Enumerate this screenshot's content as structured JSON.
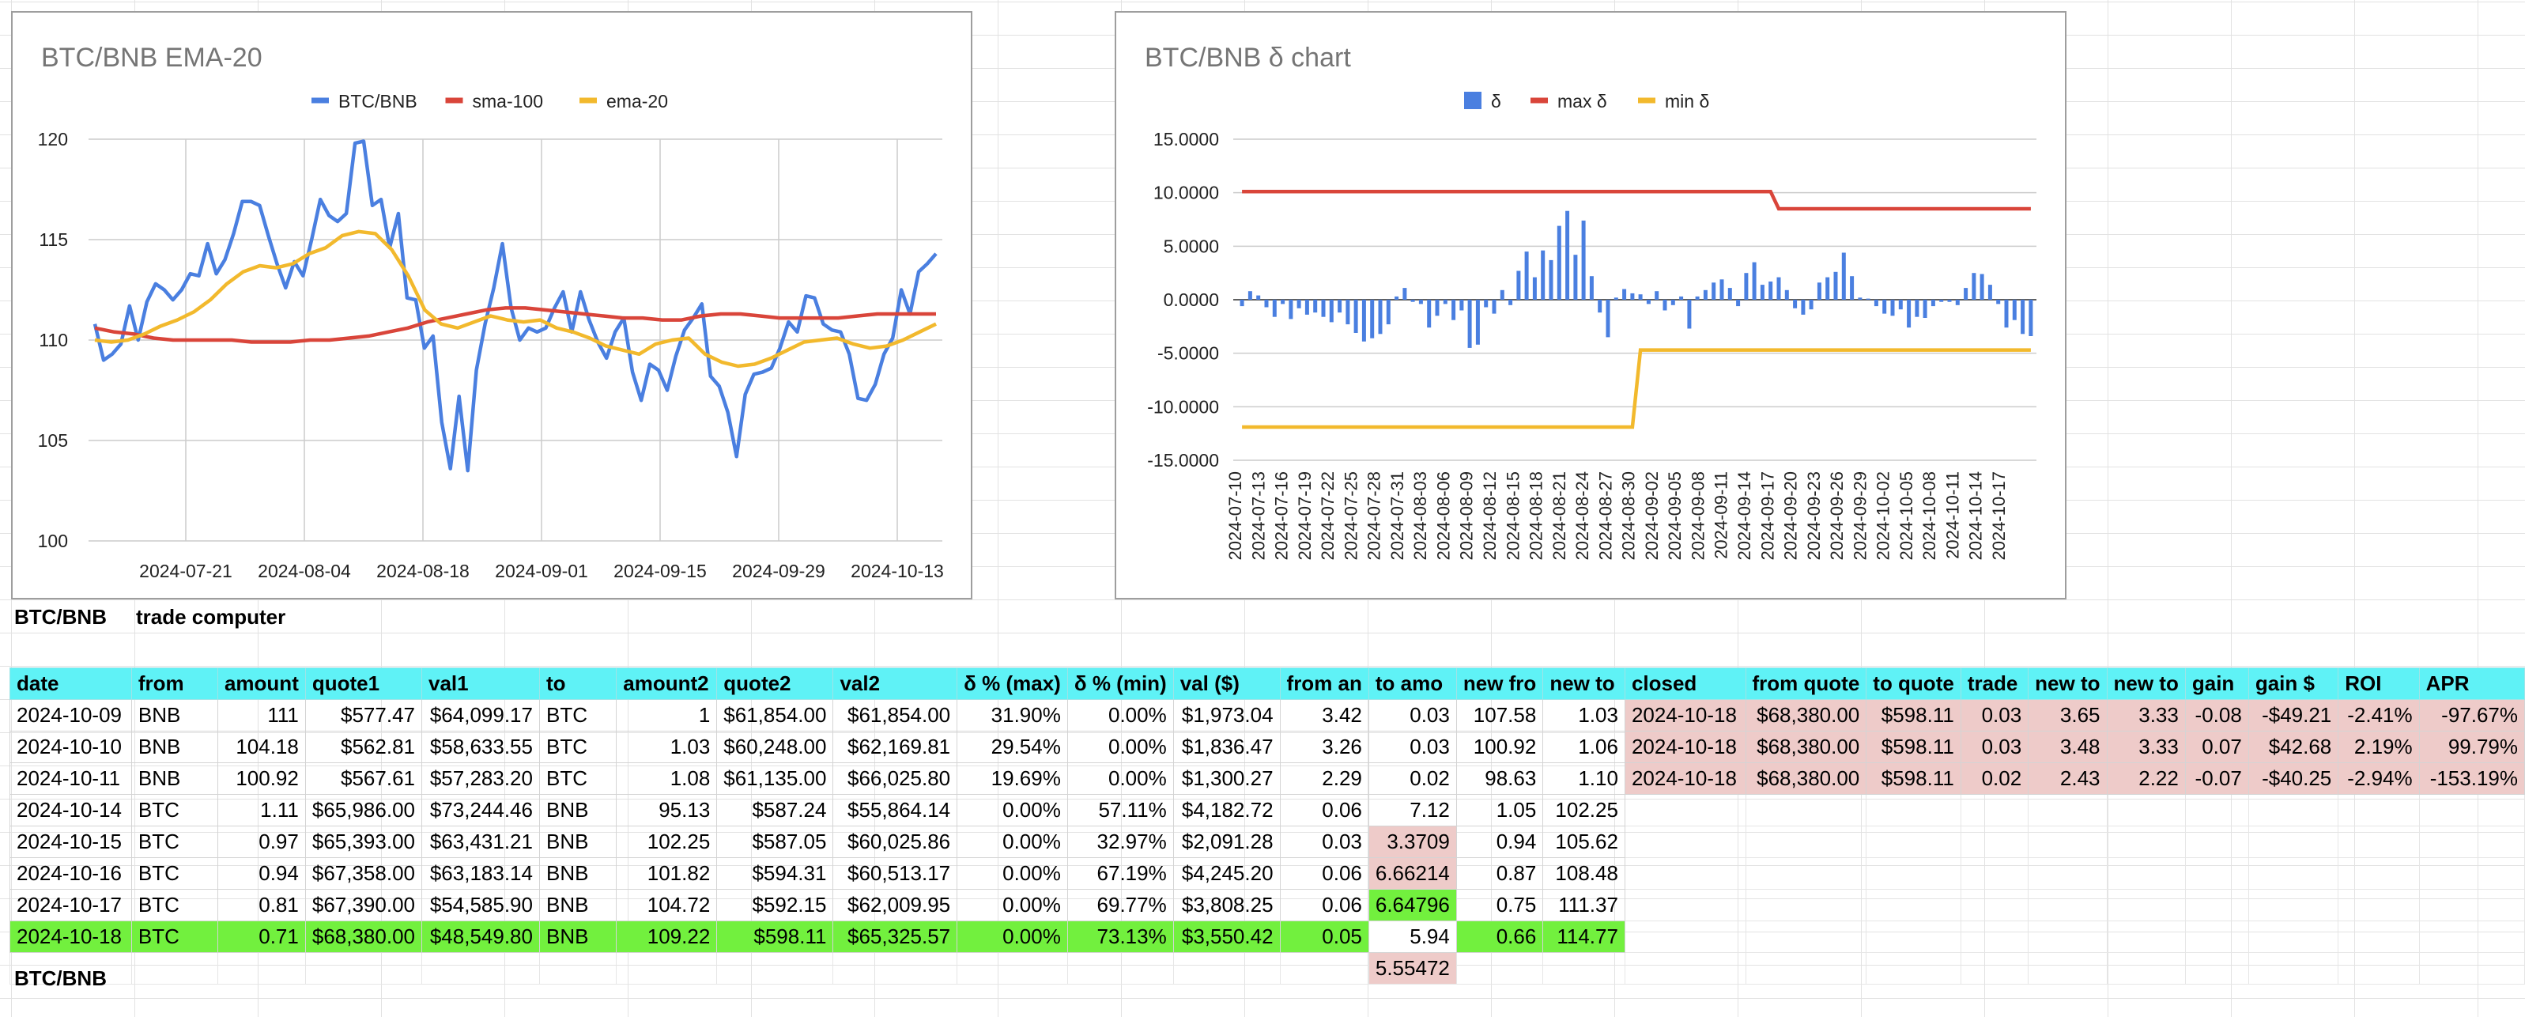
{
  "chart_data": [
    {
      "type": "line",
      "title": "BTC/BNB EMA-20",
      "legend_position": "top",
      "x_ticks": [
        "2024-07-21",
        "2024-08-04",
        "2024-08-18",
        "2024-09-01",
        "2024-09-15",
        "2024-09-29",
        "2024-10-13"
      ],
      "ylim": [
        100,
        120
      ],
      "y_ticks": [
        "100",
        "105",
        "110",
        "115",
        "120"
      ],
      "grid": true,
      "series": [
        {
          "name": "BTC/BNB",
          "color": "#4a7fe0",
          "values": [
            110.8,
            109,
            109.3,
            109.8,
            111.7,
            110,
            111.9,
            112.8,
            112.5,
            112,
            112.5,
            113.3,
            113.2,
            114.8,
            113.3,
            114,
            115.3,
            116.9,
            116.9,
            116.7,
            115.2,
            113.8,
            112.6,
            113.9,
            113.2,
            115,
            117,
            116.2,
            115.9,
            116.3,
            119.8,
            119.9,
            116.7,
            117,
            114.6,
            116.3,
            112.1,
            112,
            109.6,
            110.2,
            105.9,
            103.6,
            107.2,
            103.5,
            108.5,
            110.8,
            112.6,
            114.8,
            111.6,
            110,
            110.6,
            110.4,
            110.6,
            111.6,
            112.4,
            110.4,
            112.4,
            111,
            109.9,
            109.1,
            110.4,
            111.1,
            108.4,
            107,
            108.8,
            108.5,
            107.5,
            109.2,
            110.5,
            111.1,
            111.8,
            108.2,
            107.7,
            106.4,
            104.2,
            107.3,
            108.3,
            108.4,
            108.6,
            109.6,
            110.9,
            110.4,
            112.2,
            112.1,
            110.8,
            110.5,
            110.4,
            109.3,
            107.1,
            107,
            107.8,
            109.3,
            110.1,
            112.5,
            111.3,
            113.4,
            113.8,
            114.3
          ]
        },
        {
          "name": "sma-100",
          "color": "#d9453a",
          "values": [
            110.6,
            110.4,
            110.3,
            110.1,
            110,
            110,
            110,
            110,
            109.9,
            109.9,
            109.9,
            110,
            110,
            110.1,
            110.2,
            110.4,
            110.6,
            110.9,
            111.1,
            111.3,
            111.5,
            111.6,
            111.6,
            111.5,
            111.4,
            111.3,
            111.2,
            111.1,
            111.1,
            111,
            111,
            111.2,
            111.3,
            111.3,
            111.2,
            111.1,
            111.1,
            111.1,
            111.1,
            111.2,
            111.3,
            111.3,
            111.3,
            111.3
          ]
        },
        {
          "name": "ema-20",
          "color": "#f2b92d",
          "values": [
            110,
            109.9,
            110,
            110.3,
            110.7,
            111,
            111.4,
            112,
            112.8,
            113.4,
            113.7,
            113.6,
            113.8,
            114.3,
            114.6,
            115.2,
            115.4,
            115.3,
            114.5,
            113.2,
            111.5,
            110.8,
            110.6,
            110.9,
            111.2,
            111,
            110.9,
            111,
            110.6,
            110.4,
            110.1,
            109.7,
            109.5,
            109.3,
            109.8,
            110,
            110.1,
            109.3,
            108.9,
            108.7,
            108.8,
            109.1,
            109.5,
            109.9,
            110,
            110.1,
            109.8,
            109.6,
            109.7,
            110,
            110.4,
            110.8
          ]
        }
      ]
    },
    {
      "type": "bar+line",
      "title": "BTC/BNB δ chart",
      "legend_position": "top",
      "ylim": [
        -15,
        15
      ],
      "y_ticks": [
        "15.0000",
        "10.0000",
        "5.0000",
        "0.0000",
        "-5.0000",
        "-10.0000",
        "-15.0000"
      ],
      "grid": true,
      "x_ticks": [
        "2024-07-10",
        "2024-07-13",
        "2024-07-16",
        "2024-07-19",
        "2024-07-22",
        "2024-07-25",
        "2024-07-28",
        "2024-07-31",
        "2024-08-03",
        "2024-08-06",
        "2024-08-09",
        "2024-08-12",
        "2024-08-15",
        "2024-08-18",
        "2024-08-21",
        "2024-08-24",
        "2024-08-27",
        "2024-08-30",
        "2024-09-02",
        "2024-09-05",
        "2024-09-08",
        "2024-09-11",
        "2024-09-14",
        "2024-09-17",
        "2024-09-20",
        "2024-09-23",
        "2024-09-26",
        "2024-09-29",
        "2024-10-02",
        "2024-10-05",
        "2024-10-08",
        "2024-10-11",
        "2024-10-14",
        "2024-10-17"
      ],
      "series": [
        {
          "name": "δ",
          "color": "#4a7fe0",
          "values": [
            -0.6,
            0.8,
            0.4,
            -0.7,
            -1.6,
            -0.4,
            -1.8,
            -0.8,
            -1.4,
            -1.2,
            -1.6,
            -2.1,
            -1.2,
            -2.3,
            -3.1,
            -3.9,
            -3.6,
            -3.2,
            -2.3,
            0.3,
            1.1,
            -0.2,
            -0.4,
            -2.6,
            -1.5,
            -0.4,
            -1.9,
            -1,
            -4.5,
            -4.2,
            -0.7,
            -1.3,
            0.9,
            -0.5,
            2.7,
            4.5,
            2.1,
            4.6,
            3.7,
            6.9,
            8.3,
            4.2,
            7.4,
            2.2,
            -1.2,
            -3.5,
            0.2,
            1,
            0.6,
            0.5,
            -0.4,
            0.8,
            -1,
            -0.5,
            0.3,
            -2.7,
            0.3,
            0.9,
            1.6,
            1.9,
            1.1,
            -0.6,
            2.5,
            3.5,
            1.4,
            1.7,
            2.1,
            0.9,
            -0.8,
            -1.4,
            -0.9,
            1.6,
            2.1,
            2.6,
            4.4,
            2.2,
            0.2,
            0.1,
            -0.6,
            -1.3,
            -1.5,
            -0.9,
            -2.6,
            -1.6,
            -1.7,
            -0.6,
            -0.2,
            -0.2,
            -0.5,
            1.1,
            2.5,
            2.4,
            1.4,
            -0.4,
            -2.6,
            -1.9,
            -3.2,
            -3.4
          ]
        },
        {
          "name": "max δ",
          "color": "#d9453a",
          "values": [
            10.1,
            10.1,
            8.5,
            8.5
          ]
        },
        {
          "name": "min δ",
          "color": "#f2b92d",
          "values": [
            -11.9,
            -11.9,
            -4.7,
            -4.7
          ]
        }
      ]
    }
  ],
  "labels": {
    "pair_top": "BTC/BNB",
    "computer": "trade computer",
    "pair_bottom": "BTC/BNB"
  },
  "table": {
    "headers": [
      "date",
      "from",
      "amount",
      "quote1",
      "val1",
      "to",
      "amount2",
      "quote2",
      "val2",
      "δ % (max)",
      "δ % (min)",
      "val ($)",
      "from an",
      "to amo",
      "new fro",
      "new to",
      "closed",
      "from quote",
      "to quote",
      "trade",
      "new to",
      "new to",
      "gain",
      "gain $",
      "ROI",
      "APR"
    ],
    "rows": [
      [
        "2024-10-09",
        "BNB",
        "111",
        "$577.47",
        "$64,099.17",
        "BTC",
        "1",
        "$61,854.00",
        "$61,854.00",
        "31.90%",
        "0.00%",
        "$1,973.04",
        "3.42",
        "0.03",
        "107.58",
        "1.03",
        "2024-10-18",
        "$68,380.00",
        "$598.11",
        "0.03",
        "3.65",
        "3.33",
        "-0.08",
        "-$49.21",
        "-2.41%",
        "-97.67%"
      ],
      [
        "2024-10-10",
        "BNB",
        "104.18",
        "$562.81",
        "$58,633.55",
        "BTC",
        "1.03",
        "$60,248.00",
        "$62,169.81",
        "29.54%",
        "0.00%",
        "$1,836.47",
        "3.26",
        "0.03",
        "100.92",
        "1.06",
        "2024-10-18",
        "$68,380.00",
        "$598.11",
        "0.03",
        "3.48",
        "3.33",
        "0.07",
        "$42.68",
        "2.19%",
        "99.79%"
      ],
      [
        "2024-10-11",
        "BNB",
        "100.92",
        "$567.61",
        "$57,283.20",
        "BTC",
        "1.08",
        "$61,135.00",
        "$66,025.80",
        "19.69%",
        "0.00%",
        "$1,300.27",
        "2.29",
        "0.02",
        "98.63",
        "1.10",
        "2024-10-18",
        "$68,380.00",
        "$598.11",
        "0.02",
        "2.43",
        "2.22",
        "-0.07",
        "-$40.25",
        "-2.94%",
        "-153.19%"
      ],
      [
        "2024-10-14",
        "BTC",
        "1.11",
        "$65,986.00",
        "$73,244.46",
        "BNB",
        "95.13",
        "$587.24",
        "$55,864.14",
        "0.00%",
        "57.11%",
        "$4,182.72",
        "0.06",
        "7.12",
        "1.05",
        "102.25",
        "",
        "",
        "",
        "",
        "",
        "",
        "",
        "",
        "",
        ""
      ],
      [
        "2024-10-15",
        "BTC",
        "0.97",
        "$65,393.00",
        "$63,431.21",
        "BNB",
        "102.25",
        "$587.05",
        "$60,025.86",
        "0.00%",
        "32.97%",
        "$2,091.28",
        "0.03",
        "3.3709",
        "0.94",
        "105.62",
        "",
        "",
        "",
        "",
        "",
        "",
        "",
        "",
        "",
        ""
      ],
      [
        "2024-10-16",
        "BTC",
        "0.94",
        "$67,358.00",
        "$63,183.14",
        "BNB",
        "101.82",
        "$594.31",
        "$60,513.17",
        "0.00%",
        "67.19%",
        "$4,245.20",
        "0.06",
        "6.66214",
        "0.87",
        "108.48",
        "",
        "",
        "",
        "",
        "",
        "",
        "",
        "",
        "",
        ""
      ],
      [
        "2024-10-17",
        "BTC",
        "0.81",
        "$67,390.00",
        "$54,585.90",
        "BNB",
        "104.72",
        "$592.15",
        "$62,009.95",
        "0.00%",
        "69.77%",
        "$3,808.25",
        "0.06",
        "6.64796",
        "0.75",
        "111.37",
        "",
        "",
        "",
        "",
        "",
        "",
        "",
        "",
        "",
        ""
      ],
      [
        "2024-10-18",
        "BTC",
        "0.71",
        "$68,380.00",
        "$48,549.80",
        "BNB",
        "109.22",
        "$598.11",
        "$65,325.57",
        "0.00%",
        "73.13%",
        "$3,550.42",
        "0.05",
        "5.94",
        "0.66",
        "114.77",
        "",
        "",
        "",
        "",
        "",
        "",
        "",
        "",
        "",
        ""
      ]
    ],
    "extra_cell": "5.55472"
  }
}
